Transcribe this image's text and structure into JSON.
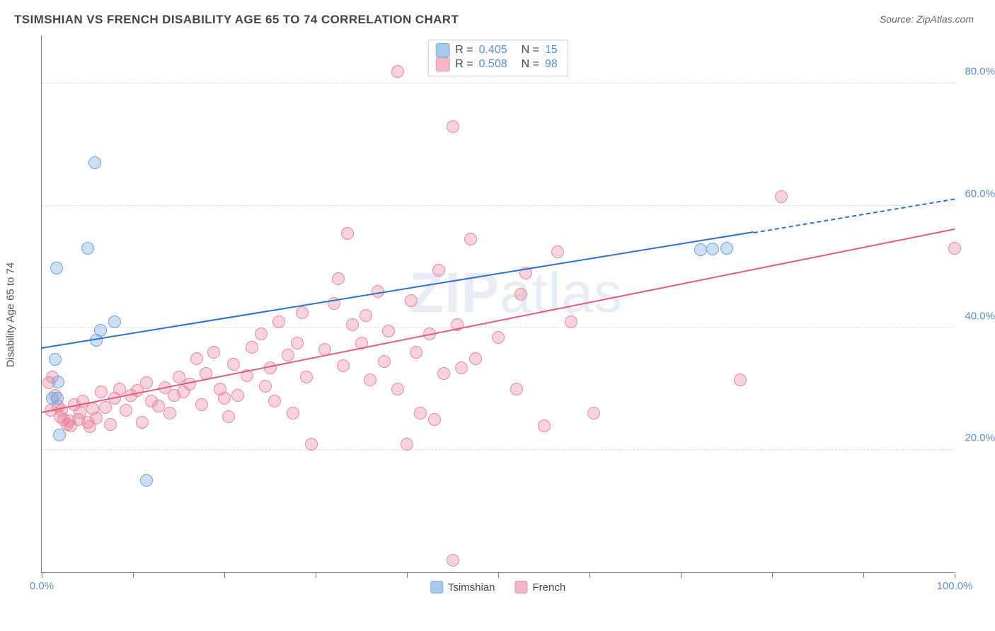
{
  "header": {
    "title": "TSIMSHIAN VS FRENCH DISABILITY AGE 65 TO 74 CORRELATION CHART",
    "source_label": "Source: ",
    "source_name": "ZipAtlas.com"
  },
  "watermark": {
    "part1": "ZIP",
    "part2": "atlas"
  },
  "axes": {
    "ylabel": "Disability Age 65 to 74",
    "x_min": 0,
    "x_max": 100,
    "y_min": 0,
    "y_max": 88,
    "x_ticks": [
      0,
      10,
      20,
      30,
      40,
      50,
      60,
      70,
      80,
      90,
      100
    ],
    "x_tick_labels": {
      "0": "0.0%",
      "100": "100.0%"
    },
    "y_gridlines": [
      20,
      40,
      60,
      80
    ],
    "y_tick_labels": {
      "20": "20.0%",
      "40": "40.0%",
      "60": "60.0%",
      "80": "80.0%"
    }
  },
  "colors": {
    "tsimshian_fill": "rgba(120,170,225,0.38)",
    "tsimshian_stroke": "#6ea3db",
    "tsimshian_line": "#2e6fd1",
    "french_fill": "rgba(235,120,150,0.33)",
    "french_stroke": "#e68aa4",
    "french_line": "#e15a88",
    "swatch_tsimshian_fill": "#a9c8ec",
    "swatch_tsimshian_border": "#7bb0e3",
    "swatch_french_fill": "#f3b6c7",
    "swatch_french_border": "#e993af",
    "axis_label": "#5b8dd6",
    "grid": "#dddddd"
  },
  "legend_stats": {
    "r_label": "R =",
    "n_label": "N =",
    "series": [
      {
        "r": "0.405",
        "n": "15",
        "swatch": "tsimshian"
      },
      {
        "r": "0.508",
        "n": "98",
        "swatch": "french"
      }
    ]
  },
  "bottom_legend": [
    {
      "label": "Tsimshian",
      "swatch": "tsimshian"
    },
    {
      "label": "French",
      "swatch": "french"
    }
  ],
  "marker_radius": 9,
  "series": {
    "tsimshian": {
      "points": [
        [
          1.2,
          28.5
        ],
        [
          1.7,
          28.5
        ],
        [
          1.9,
          22.5
        ],
        [
          5.8,
          67.0
        ],
        [
          5.0,
          53.0
        ],
        [
          1.6,
          49.8
        ],
        [
          1.5,
          34.8
        ],
        [
          1.8,
          31.2
        ],
        [
          6.4,
          39.6
        ],
        [
          8.0,
          41.0
        ],
        [
          6.0,
          38.0
        ],
        [
          11.5,
          15.0
        ],
        [
          72.2,
          52.8
        ],
        [
          75.0,
          53.0
        ],
        [
          73.5,
          52.9
        ]
      ],
      "trend": {
        "x1": 0,
        "y1": 36.5,
        "x2": 78,
        "y2": 55.5,
        "dash_to_x": 100,
        "dash_to_y": 61.0
      }
    },
    "french": {
      "points": [
        [
          0.8,
          31.0
        ],
        [
          1.2,
          32.0
        ],
        [
          1.5,
          29.0
        ],
        [
          1.8,
          27.2
        ],
        [
          2.0,
          25.5
        ],
        [
          2.2,
          26.5
        ],
        [
          2.4,
          25.0
        ],
        [
          2.8,
          24.2
        ],
        [
          3.0,
          24.8
        ],
        [
          3.2,
          24.0
        ],
        [
          3.6,
          27.5
        ],
        [
          4.0,
          25.0
        ],
        [
          4.2,
          26.2
        ],
        [
          4.5,
          28.0
        ],
        [
          5.0,
          24.5
        ],
        [
          5.3,
          23.8
        ],
        [
          5.6,
          26.8
        ],
        [
          6.0,
          25.2
        ],
        [
          6.5,
          29.5
        ],
        [
          7.0,
          27.0
        ],
        [
          7.5,
          24.2
        ],
        [
          8.0,
          28.5
        ],
        [
          8.5,
          30.0
        ],
        [
          9.2,
          26.5
        ],
        [
          9.8,
          29.0
        ],
        [
          10.5,
          29.8
        ],
        [
          11.0,
          24.5
        ],
        [
          11.5,
          31.0
        ],
        [
          12.0,
          28.0
        ],
        [
          12.8,
          27.2
        ],
        [
          13.5,
          30.2
        ],
        [
          14.0,
          26.0
        ],
        [
          14.5,
          29.0
        ],
        [
          15.0,
          32.0
        ],
        [
          15.5,
          29.5
        ],
        [
          16.2,
          30.8
        ],
        [
          17.0,
          35.0
        ],
        [
          17.5,
          27.5
        ],
        [
          18.0,
          32.5
        ],
        [
          18.8,
          36.0
        ],
        [
          19.5,
          30.0
        ],
        [
          20.0,
          28.5
        ],
        [
          20.5,
          25.5
        ],
        [
          21.0,
          34.0
        ],
        [
          21.5,
          29.0
        ],
        [
          22.5,
          32.2
        ],
        [
          23.0,
          36.8
        ],
        [
          24.0,
          39.0
        ],
        [
          24.5,
          30.5
        ],
        [
          25.0,
          33.5
        ],
        [
          25.5,
          28.0
        ],
        [
          26.0,
          41.0
        ],
        [
          27.0,
          35.5
        ],
        [
          27.5,
          26.0
        ],
        [
          28.0,
          37.5
        ],
        [
          28.5,
          42.5
        ],
        [
          29.0,
          32.0
        ],
        [
          29.5,
          21.0
        ],
        [
          31.0,
          36.5
        ],
        [
          32.0,
          44.0
        ],
        [
          32.5,
          48.0
        ],
        [
          33.0,
          33.8
        ],
        [
          33.5,
          55.5
        ],
        [
          34.0,
          40.5
        ],
        [
          35.0,
          37.5
        ],
        [
          35.5,
          42.0
        ],
        [
          36.0,
          31.5
        ],
        [
          36.8,
          46.0
        ],
        [
          37.5,
          34.5
        ],
        [
          38.0,
          39.5
        ],
        [
          39.0,
          30.0
        ],
        [
          40.0,
          21.0
        ],
        [
          40.5,
          44.5
        ],
        [
          41.0,
          36.0
        ],
        [
          41.5,
          26.0
        ],
        [
          42.5,
          39.0
        ],
        [
          43.0,
          25.0
        ],
        [
          43.5,
          49.5
        ],
        [
          44.0,
          32.5
        ],
        [
          45.0,
          73.0
        ],
        [
          45.5,
          40.5
        ],
        [
          46.0,
          33.5
        ],
        [
          47.0,
          54.5
        ],
        [
          47.5,
          35.0
        ],
        [
          50.0,
          38.5
        ],
        [
          52.0,
          30.0
        ],
        [
          52.5,
          45.5
        ],
        [
          53.0,
          49.0
        ],
        [
          55.0,
          24.0
        ],
        [
          56.5,
          52.5
        ],
        [
          58.0,
          41.0
        ],
        [
          45.0,
          2.0
        ],
        [
          60.5,
          26.0
        ],
        [
          76.5,
          31.5
        ],
        [
          81.0,
          61.5
        ],
        [
          100.0,
          53.0
        ],
        [
          39.0,
          82.0
        ],
        [
          1.0,
          26.5
        ]
      ],
      "trend": {
        "x1": 0,
        "y1": 26.0,
        "x2": 100,
        "y2": 56.0
      }
    }
  }
}
